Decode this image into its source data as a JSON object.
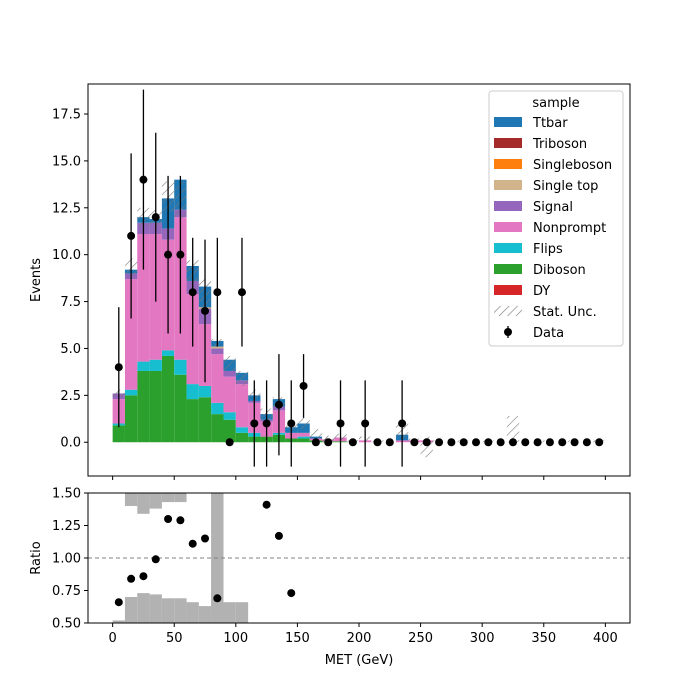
{
  "colors": {
    "Ttbar": "#1f77b4",
    "Triboson": "#a52a2a",
    "Singleboson": "#ff7f0e",
    "Single top": "#d2b48c",
    "Signal": "#9467bd",
    "Nonprompt": "#e377c2",
    "Flips": "#17becf",
    "Diboson": "#2ca02c",
    "DY": "#d62728",
    "ratio_band": "#b2b2b2",
    "data": "#000000",
    "unity_line": "#808080"
  },
  "chart_data": [
    {
      "type": "bar",
      "panel": "main",
      "stacked": true,
      "xlabel": "",
      "ylabel": "Events",
      "xlim": [
        -20,
        420
      ],
      "ylim": [
        -1.8,
        19.1
      ],
      "yticks": [
        0.0,
        2.5,
        5.0,
        7.5,
        10.0,
        12.5,
        15.0,
        17.5
      ],
      "ytick_labels": [
        "0.0",
        "2.5",
        "5.0",
        "7.5",
        "10.0",
        "12.5",
        "15.0",
        "17.5"
      ],
      "xticks": [
        0,
        50,
        100,
        150,
        200,
        250,
        300,
        350,
        400
      ],
      "bin_edges": [
        0,
        10,
        20,
        30,
        40,
        50,
        60,
        70,
        80,
        90,
        100,
        110,
        120,
        130,
        140,
        150,
        160,
        170,
        180,
        190,
        200,
        210,
        220,
        230,
        240,
        250,
        260,
        270,
        280,
        290,
        300,
        310,
        320,
        330,
        340,
        350,
        360,
        370,
        380,
        390,
        400
      ],
      "legend": {
        "title": "sample",
        "position": "top-right",
        "entries": [
          "Ttbar",
          "Triboson",
          "Singleboson",
          "Single top",
          "Signal",
          "Nonprompt",
          "Flips",
          "Diboson",
          "DY",
          "Stat. Unc.",
          "Data"
        ]
      },
      "series": [
        {
          "name": "DY",
          "values": [
            0,
            0,
            0,
            0,
            0,
            0,
            0,
            0,
            0,
            0,
            0,
            0,
            0,
            0,
            0,
            0,
            0,
            0,
            0,
            0,
            0,
            0,
            0,
            0,
            0,
            0,
            0,
            0,
            0,
            0,
            0,
            0,
            0,
            0,
            0,
            0,
            0,
            0,
            0,
            0
          ]
        },
        {
          "name": "Diboson",
          "values": [
            0.9,
            2.5,
            3.8,
            3.8,
            4.6,
            3.6,
            2.3,
            2.4,
            1.5,
            1.2,
            0.5,
            0.3,
            0.3,
            0.4,
            0.2,
            0.2,
            0.1,
            0.05,
            0.05,
            0,
            0,
            0,
            0,
            0,
            0,
            0,
            0,
            0,
            0,
            0,
            0,
            0,
            0,
            0,
            0,
            0,
            0,
            0,
            0,
            0
          ]
        },
        {
          "name": "Flips",
          "values": [
            0.1,
            0.3,
            0.5,
            0.6,
            0.3,
            0.8,
            0.8,
            0.6,
            0.6,
            0.4,
            0.3,
            0.2,
            0,
            0.1,
            0,
            0.1,
            0,
            0,
            0,
            0,
            0,
            0,
            0,
            0,
            0,
            0,
            0,
            0,
            0,
            0,
            0,
            0,
            0,
            0,
            0,
            0,
            0,
            0,
            0,
            0
          ]
        },
        {
          "name": "Nonprompt",
          "values": [
            1.3,
            5.9,
            6.8,
            6.7,
            5.9,
            7.6,
            4.8,
            3.3,
            2.6,
            1.9,
            2.3,
            1.6,
            0.8,
            1.2,
            0.3,
            0.2,
            0.1,
            0.1,
            0.2,
            0,
            0.1,
            0,
            0,
            0.1,
            0.1,
            0.1,
            0,
            0,
            0,
            0,
            0,
            0,
            0,
            0,
            0,
            0,
            0,
            0,
            0,
            0
          ]
        },
        {
          "name": "Signal",
          "values": [
            0.3,
            0.3,
            0.6,
            0.6,
            0.6,
            0.4,
            0.7,
            0.8,
            0.3,
            0.3,
            0.2,
            0.1,
            0.1,
            0.2,
            0,
            0,
            0,
            0,
            0,
            0,
            0,
            0,
            0,
            0,
            0,
            0,
            0,
            0,
            0,
            0,
            0,
            0,
            0,
            0,
            0,
            0,
            0,
            0,
            0,
            0
          ]
        },
        {
          "name": "Single top",
          "values": [
            0,
            0,
            0,
            0,
            0,
            0,
            0,
            0.1,
            0.1,
            0,
            0,
            0,
            0,
            0,
            0,
            0,
            0,
            0,
            0,
            0,
            0,
            0,
            0,
            0,
            0,
            0,
            0,
            0,
            0,
            0,
            0,
            0,
            0,
            0,
            0,
            0,
            0,
            0,
            0,
            0
          ]
        },
        {
          "name": "Singleboson",
          "values": [
            0,
            0,
            0,
            0,
            0,
            0,
            0,
            0,
            0,
            0,
            0,
            0,
            0,
            0,
            0,
            0,
            0,
            0,
            0,
            0,
            0,
            0,
            0,
            0,
            0,
            0,
            0,
            0,
            0,
            0,
            0,
            0,
            0,
            0,
            0,
            0,
            0,
            0,
            0,
            0
          ]
        },
        {
          "name": "Triboson",
          "values": [
            0,
            0,
            0,
            0,
            0,
            0,
            0,
            0,
            0,
            0,
            0,
            0,
            0,
            0,
            0,
            0,
            0,
            0,
            0,
            0,
            0,
            0,
            0,
            0,
            0,
            0,
            0,
            0,
            0,
            0,
            0,
            0,
            0,
            0,
            0,
            0,
            0,
            0,
            0,
            0
          ]
        },
        {
          "name": "Ttbar",
          "values": [
            0,
            0.2,
            0.3,
            0.2,
            1.6,
            1.6,
            0.8,
            1.1,
            0.3,
            0.6,
            0.4,
            0.3,
            0.3,
            0.4,
            0.3,
            0.5,
            0.1,
            0,
            0,
            0,
            0,
            0,
            0,
            0.3,
            0,
            0,
            0,
            0,
            0,
            0,
            0,
            0,
            0,
            0,
            0,
            0,
            0,
            0,
            0,
            0
          ]
        }
      ],
      "stat_unc": {
        "name": "Stat. Unc.",
        "low": [
          2.4,
          8.9,
          11.5,
          11.4,
          12.3,
          11.9,
          8.5,
          7.1,
          5.1,
          3.8,
          3.0,
          2.2,
          1.2,
          1.9,
          0.5,
          0.7,
          0.0,
          0.0,
          0.1,
          0.0,
          0.0,
          0.0,
          0.0,
          0.2,
          0.0,
          -0.8,
          0.0,
          0.0,
          0.0,
          0.0,
          0.0,
          0.0,
          0.0,
          0.0,
          0.0,
          0.0,
          0.0,
          0.0,
          0.0,
          0.0
        ],
        "high": [
          2.8,
          9.8,
          12.5,
          12.4,
          13.9,
          13.9,
          9.7,
          8.7,
          5.5,
          4.6,
          3.8,
          2.8,
          1.8,
          2.4,
          1.1,
          1.3,
          0.7,
          0.35,
          0.45,
          0.1,
          0.3,
          0.1,
          0.1,
          1.0,
          0.2,
          0.3,
          0.1,
          0.1,
          0.1,
          0.1,
          0.1,
          0.1,
          1.4,
          0.1,
          0.1,
          0.1,
          0.1,
          0.1,
          0.1,
          0.1
        ]
      },
      "data_points": {
        "name": "Data",
        "x": [
          5,
          15,
          25,
          35,
          45,
          55,
          65,
          75,
          85,
          95,
          105,
          115,
          125,
          135,
          145,
          155,
          165,
          175,
          185,
          195,
          205,
          215,
          225,
          235,
          245,
          255,
          265,
          275,
          285,
          295,
          305,
          315,
          325,
          335,
          345,
          355,
          365,
          375,
          385,
          395
        ],
        "y": [
          4,
          11,
          14,
          12,
          10,
          10,
          8,
          7,
          8,
          0,
          8,
          1,
          1,
          2,
          1,
          3,
          0,
          0,
          1,
          0,
          1,
          0,
          0,
          1,
          0,
          0,
          0,
          0,
          0,
          0,
          0,
          0,
          0,
          0,
          0,
          0,
          0,
          0,
          0,
          0
        ],
        "yerr": [
          3.2,
          4.4,
          4.8,
          4.5,
          4.2,
          4.2,
          2.9,
          3.8,
          2.9,
          0,
          2.9,
          2.3,
          2.3,
          2.7,
          2.3,
          1.7,
          0,
          0,
          2.3,
          0,
          2.3,
          0,
          0,
          2.3,
          0,
          0,
          0,
          0,
          0,
          0,
          0,
          0,
          0,
          0,
          0,
          0,
          0,
          0,
          0,
          0
        ]
      }
    },
    {
      "type": "scatter",
      "panel": "ratio",
      "xlabel": "MET (GeV)",
      "ylabel": "Ratio",
      "xlim": [
        -20,
        420
      ],
      "ylim": [
        0.5,
        1.5
      ],
      "yticks": [
        0.5,
        0.75,
        1.0,
        1.25,
        1.5
      ],
      "ytick_labels": [
        "0.50",
        "0.75",
        "1.00",
        "1.25",
        "1.50"
      ],
      "xticks": [
        0,
        50,
        100,
        150,
        200,
        250,
        300,
        350,
        400
      ],
      "xtick_labels": [
        "0",
        "50",
        "100",
        "150",
        "200",
        "250",
        "300",
        "350",
        "400"
      ],
      "unity_line": 1.0,
      "band": {
        "bin_edges": [
          0,
          10,
          20,
          30,
          40,
          50,
          60,
          70,
          80,
          90,
          100,
          110,
          120,
          130,
          140,
          150
        ],
        "low": [
          0.52,
          0.7,
          0.73,
          0.72,
          0.69,
          0.69,
          0.66,
          0.63,
          1.5,
          0.66,
          0.66,
          0.5,
          0.5,
          0.5,
          0.5
        ],
        "high": [
          1.5,
          1.4,
          1.34,
          1.38,
          1.43,
          1.43,
          1.5,
          1.5,
          1.5,
          1.5,
          1.5,
          1.5,
          1.5,
          1.5,
          1.5
        ]
      },
      "points": {
        "x": [
          5,
          15,
          25,
          35,
          45,
          55,
          65,
          75,
          85,
          125,
          135,
          145
        ],
        "y": [
          0.66,
          0.84,
          0.86,
          0.99,
          1.3,
          1.29,
          1.11,
          1.15,
          0.69,
          1.41,
          1.17,
          0.73
        ]
      }
    }
  ]
}
